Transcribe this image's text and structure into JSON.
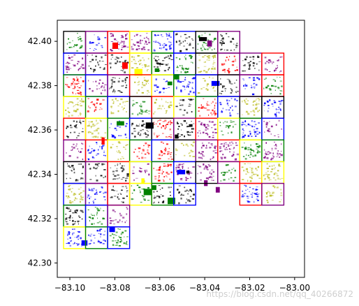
{
  "chart_data": {
    "type": "scatter",
    "title": "",
    "xlabel": "",
    "ylabel": "",
    "xlim": [
      -83.1056,
      -82.9956
    ],
    "ylim": [
      42.2935,
      42.4095
    ],
    "xticks": [
      -83.1,
      -83.08,
      -83.06,
      -83.04,
      -83.02,
      -83.0
    ],
    "xtick_labels": [
      "−83.10",
      "−83.08",
      "−83.06",
      "−83.04",
      "−83.02",
      "−83.00"
    ],
    "yticks": [
      42.3,
      42.32,
      42.34,
      42.36,
      42.38,
      42.4
    ],
    "ytick_labels": [
      "42.30",
      "42.32",
      "42.34",
      "42.36",
      "42.38",
      "42.40"
    ],
    "grid": false,
    "colors": {
      "black": "#000000",
      "purple": "#800080",
      "red": "#ff0000",
      "yellow": "#ffff00",
      "green": "#008000",
      "blue": "#0000ff",
      "olive": "#bcbd22"
    },
    "cell_size_deg": 0.0098,
    "cells": [
      {
        "col": 0,
        "row": 0,
        "color": "black"
      },
      {
        "col": 1,
        "row": 0,
        "color": "purple"
      },
      {
        "col": 2,
        "row": 0,
        "color": "red"
      },
      {
        "col": 3,
        "row": 0,
        "color": "yellow"
      },
      {
        "col": 4,
        "row": 0,
        "color": "green"
      },
      {
        "col": 5,
        "row": 0,
        "color": "blue"
      },
      {
        "col": 6,
        "row": 0,
        "color": "black"
      },
      {
        "col": 7,
        "row": 0,
        "color": "purple"
      },
      {
        "col": 0,
        "row": 1,
        "color": "blue"
      },
      {
        "col": 1,
        "row": 1,
        "color": "purple"
      },
      {
        "col": 2,
        "row": 1,
        "color": "red"
      },
      {
        "col": 3,
        "row": 1,
        "color": "yellow"
      },
      {
        "col": 4,
        "row": 1,
        "color": "green"
      },
      {
        "col": 5,
        "row": 1,
        "color": "blue"
      },
      {
        "col": 6,
        "row": 1,
        "color": "black"
      },
      {
        "col": 7,
        "row": 1,
        "color": "purple"
      },
      {
        "col": 8,
        "row": 1,
        "color": "purple"
      },
      {
        "col": 9,
        "row": 1,
        "color": "red"
      },
      {
        "col": 0,
        "row": 2,
        "color": "green"
      },
      {
        "col": 1,
        "row": 2,
        "color": "blue"
      },
      {
        "col": 2,
        "row": 2,
        "color": "purple"
      },
      {
        "col": 3,
        "row": 2,
        "color": "red"
      },
      {
        "col": 4,
        "row": 2,
        "color": "yellow"
      },
      {
        "col": 5,
        "row": 2,
        "color": "green"
      },
      {
        "col": 6,
        "row": 2,
        "color": "blue"
      },
      {
        "col": 7,
        "row": 2,
        "color": "black"
      },
      {
        "col": 8,
        "row": 2,
        "color": "purple"
      },
      {
        "col": 9,
        "row": 2,
        "color": "red"
      },
      {
        "col": 0,
        "row": 3,
        "color": "yellow"
      },
      {
        "col": 1,
        "row": 3,
        "color": "green"
      },
      {
        "col": 2,
        "row": 3,
        "color": "blue"
      },
      {
        "col": 3,
        "row": 3,
        "color": "black"
      },
      {
        "col": 4,
        "row": 3,
        "color": "red"
      },
      {
        "col": 5,
        "row": 3,
        "color": "yellow"
      },
      {
        "col": 6,
        "row": 3,
        "color": "green"
      },
      {
        "col": 7,
        "row": 3,
        "color": "blue"
      },
      {
        "col": 8,
        "row": 3,
        "color": "black"
      },
      {
        "col": 9,
        "row": 3,
        "color": "black"
      },
      {
        "col": 0,
        "row": 4,
        "color": "red"
      },
      {
        "col": 1,
        "row": 4,
        "color": "yellow"
      },
      {
        "col": 2,
        "row": 4,
        "color": "green"
      },
      {
        "col": 3,
        "row": 4,
        "color": "blue"
      },
      {
        "col": 4,
        "row": 4,
        "color": "black"
      },
      {
        "col": 5,
        "row": 4,
        "color": "purple"
      },
      {
        "col": 6,
        "row": 4,
        "color": "red"
      },
      {
        "col": 7,
        "row": 4,
        "color": "yellow"
      },
      {
        "col": 8,
        "row": 4,
        "color": "green"
      },
      {
        "col": 9,
        "row": 4,
        "color": "blue"
      },
      {
        "col": 0,
        "row": 5,
        "color": "purple"
      },
      {
        "col": 1,
        "row": 5,
        "color": "red"
      },
      {
        "col": 2,
        "row": 5,
        "color": "yellow"
      },
      {
        "col": 3,
        "row": 5,
        "color": "green"
      },
      {
        "col": 4,
        "row": 5,
        "color": "blue"
      },
      {
        "col": 5,
        "row": 5,
        "color": "black"
      },
      {
        "col": 6,
        "row": 5,
        "color": "purple"
      },
      {
        "col": 7,
        "row": 5,
        "color": "red"
      },
      {
        "col": 8,
        "row": 5,
        "color": "yellow"
      },
      {
        "col": 9,
        "row": 5,
        "color": "green"
      },
      {
        "col": 0,
        "row": 6,
        "color": "black"
      },
      {
        "col": 1,
        "row": 6,
        "color": "purple"
      },
      {
        "col": 2,
        "row": 6,
        "color": "red"
      },
      {
        "col": 3,
        "row": 6,
        "color": "yellow"
      },
      {
        "col": 4,
        "row": 6,
        "color": "green"
      },
      {
        "col": 5,
        "row": 6,
        "color": "blue"
      },
      {
        "col": 6,
        "row": 6,
        "color": "black"
      },
      {
        "col": 7,
        "row": 6,
        "color": "purple"
      },
      {
        "col": 8,
        "row": 6,
        "color": "red"
      },
      {
        "col": 9,
        "row": 6,
        "color": "yellow"
      },
      {
        "col": 0,
        "row": 7,
        "color": "blue"
      },
      {
        "col": 1,
        "row": 7,
        "color": "purple"
      },
      {
        "col": 2,
        "row": 7,
        "color": "red"
      },
      {
        "col": 3,
        "row": 7,
        "color": "yellow"
      },
      {
        "col": 4,
        "row": 7,
        "color": "green"
      },
      {
        "col": 5,
        "row": 7,
        "color": "blue"
      },
      {
        "col": 8,
        "row": 7,
        "color": "red"
      },
      {
        "col": 9,
        "row": 7,
        "color": "purple"
      },
      {
        "col": 0,
        "row": 8,
        "color": "green"
      },
      {
        "col": 1,
        "row": 8,
        "color": "blue"
      },
      {
        "col": 2,
        "row": 8,
        "color": "purple"
      },
      {
        "col": 0,
        "row": 9,
        "color": "yellow"
      },
      {
        "col": 1,
        "row": 9,
        "color": "green"
      },
      {
        "col": 2,
        "row": 9,
        "color": "blue"
      }
    ],
    "building_patches": [
      {
        "x": -83.0408,
        "y": 42.401,
        "color": "black"
      },
      {
        "x": -83.0378,
        "y": 42.399,
        "color": "purple"
      },
      {
        "x": -83.0798,
        "y": 42.398,
        "color": "red"
      },
      {
        "x": -83.0755,
        "y": 42.389,
        "color": "red"
      },
      {
        "x": -83.0695,
        "y": 42.386,
        "color": "yellow"
      },
      {
        "x": -83.0612,
        "y": 42.387,
        "color": "green"
      },
      {
        "x": -83.0555,
        "y": 42.381,
        "color": "green"
      },
      {
        "x": -83.0525,
        "y": 42.384,
        "color": "green"
      },
      {
        "x": -83.0352,
        "y": 42.381,
        "color": "blue"
      },
      {
        "x": -83.0645,
        "y": 42.362,
        "color": "black"
      },
      {
        "x": -83.0462,
        "y": 42.362,
        "color": "black"
      },
      {
        "x": -83.0525,
        "y": 42.357,
        "color": "black"
      },
      {
        "x": -83.0475,
        "y": 42.341,
        "color": "black"
      },
      {
        "x": -83.0505,
        "y": 42.341,
        "color": "blue"
      },
      {
        "x": -83.0625,
        "y": 42.334,
        "color": "green"
      },
      {
        "x": -83.0548,
        "y": 42.328,
        "color": "green"
      },
      {
        "x": -83.0655,
        "y": 42.332,
        "color": "green"
      },
      {
        "x": -83.0342,
        "y": 42.333,
        "color": "purple"
      },
      {
        "x": -83.0812,
        "y": 42.315,
        "color": "blue"
      },
      {
        "x": -83.0935,
        "y": 42.309,
        "color": "blue"
      },
      {
        "x": -83.0775,
        "y": 42.363,
        "color": "green"
      },
      {
        "x": -83.0852,
        "y": 42.355,
        "color": "red"
      },
      {
        "x": -83.0675,
        "y": 42.337,
        "color": "yellow"
      },
      {
        "x": -83.0395,
        "y": 42.336,
        "color": "purple"
      }
    ]
  },
  "watermark": "https://blog.csdn.net/qq_40266872"
}
